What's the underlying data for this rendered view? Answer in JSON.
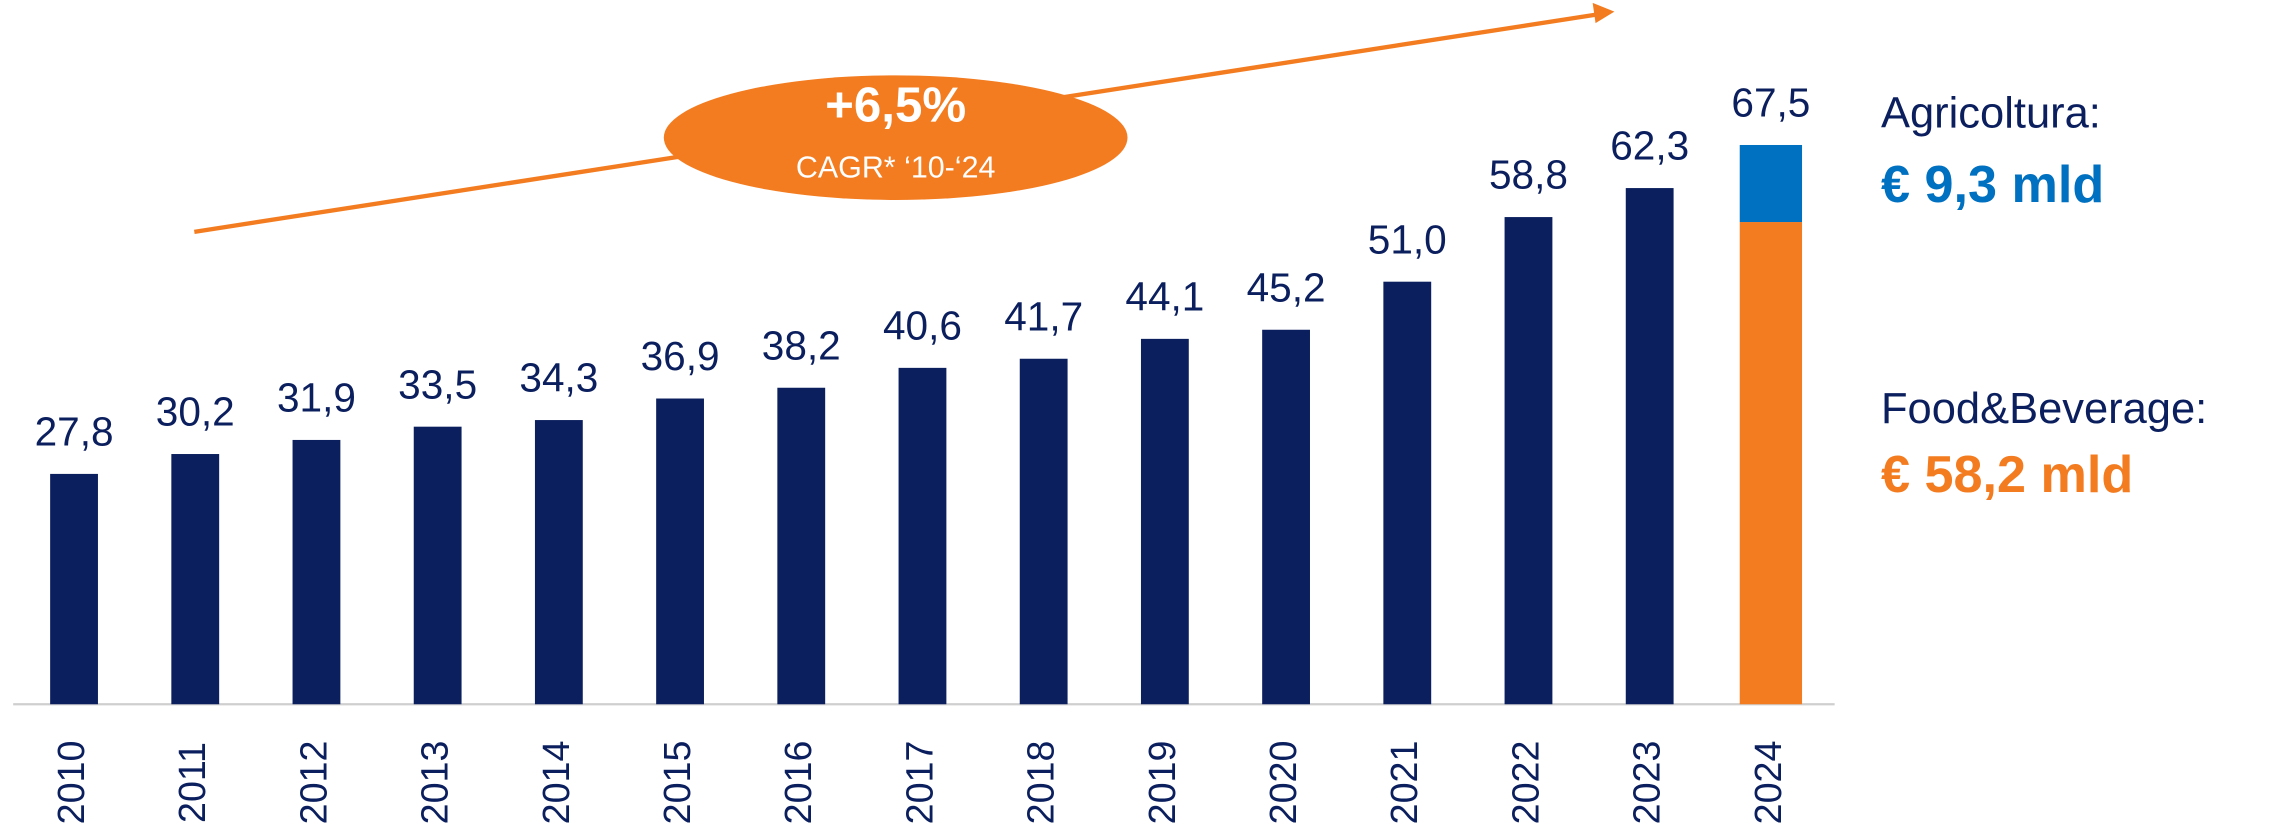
{
  "chart_data": {
    "type": "bar",
    "categories": [
      "2010",
      "2011",
      "2012",
      "2013",
      "2014",
      "2015",
      "2016",
      "2017",
      "2018",
      "2019",
      "2020",
      "2021",
      "2022",
      "2023",
      "2024"
    ],
    "values": [
      27.8,
      30.2,
      31.9,
      33.5,
      34.3,
      36.9,
      38.2,
      40.6,
      41.7,
      44.1,
      45.2,
      51.0,
      58.8,
      62.3,
      67.5
    ],
    "value_labels": [
      "27,8",
      "30,2",
      "31,9",
      "33,5",
      "34,3",
      "36,9",
      "38,2",
      "40,6",
      "41,7",
      "44,1",
      "45,2",
      "51,0",
      "58,8",
      "62,3",
      "67,5"
    ],
    "color": "#0b1f5e",
    "breakdown": [
      {
        "name": "Food&Beverage:",
        "value": 58.2,
        "value_label": "€ 58,2 mld",
        "color": "#f47c20"
      },
      {
        "name": "Agricoltura:",
        "value": 9.3,
        "value_label": "€ 9,3 mld",
        "color": "#0070c0"
      }
    ],
    "annotation": {
      "title": "+6,5%",
      "subtitle": "CAGR* ‘10-‘24",
      "color": "#f47c20"
    },
    "ylim": [
      0,
      85
    ]
  }
}
